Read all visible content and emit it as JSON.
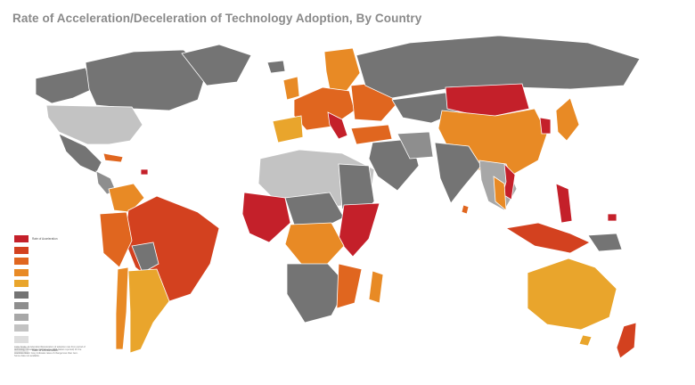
{
  "title": "Rate of Acceleration/Deceleration of Technology Adoption, By Country",
  "colors": {
    "ocean": "#ffffff",
    "border": "#ffffff",
    "no_data": "#e4e4e4"
  },
  "legend": {
    "items": [
      {
        "color": "#c4202a",
        "label": "Rate of Acceleration"
      },
      {
        "color": "#d3411f",
        "label": ""
      },
      {
        "color": "#e0661f",
        "label": ""
      },
      {
        "color": "#e88a25",
        "label": ""
      },
      {
        "color": "#e9a52c",
        "label": ""
      },
      {
        "color": "#747474",
        "label": ""
      },
      {
        "color": "#8e8e8e",
        "label": ""
      },
      {
        "color": "#a7a7a7",
        "label": ""
      },
      {
        "color": "#c3c3c3",
        "label": ""
      },
      {
        "color": "#dedede",
        "label": ""
      },
      {
        "color": "#ebebeb",
        "label": "Rate of Deceleration"
      }
    ]
  },
  "note": {
    "lines": [
      "Color Scale: Acceleration/Deceleration of adoption rate from period of",
      "technology introduction (baseline) to 2006 (latest reported) for the",
      "countries listed. Grey indicates rates of change less than zero.",
      "Some data not available."
    ]
  }
}
